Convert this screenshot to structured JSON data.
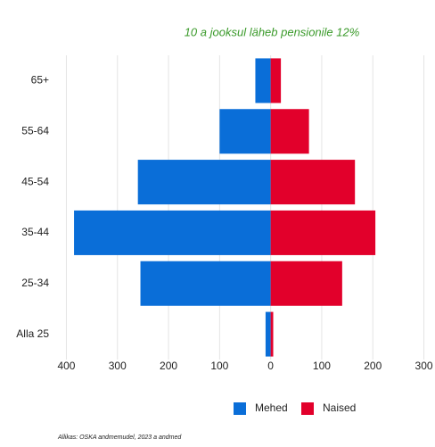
{
  "chart_data": {
    "type": "bar",
    "orientation": "horizontal",
    "stacked": true,
    "title": "10 a jooksul läheb pensionile 12%",
    "categories": [
      "65+",
      "55-64",
      "45-54",
      "35-44",
      "25-34",
      "Alla 25"
    ],
    "series": [
      {
        "name": "Mehed",
        "color": "#0a6ed8",
        "values": [
          -30,
          -100,
          -260,
          -385,
          -255,
          -10
        ]
      },
      {
        "name": "Naised",
        "color": "#e2002b",
        "values": [
          20,
          75,
          165,
          205,
          140,
          5
        ]
      }
    ],
    "xlim": [
      -420,
      320
    ],
    "xticks": [
      {
        "value": -400,
        "label": "400"
      },
      {
        "value": -300,
        "label": "300"
      },
      {
        "value": -200,
        "label": "200"
      },
      {
        "value": -100,
        "label": "100"
      },
      0,
      100,
      200,
      300
    ],
    "grid": true,
    "legend": "bottom",
    "source": "Allikas: OSKA andmemudel, 2023 a andmed"
  }
}
